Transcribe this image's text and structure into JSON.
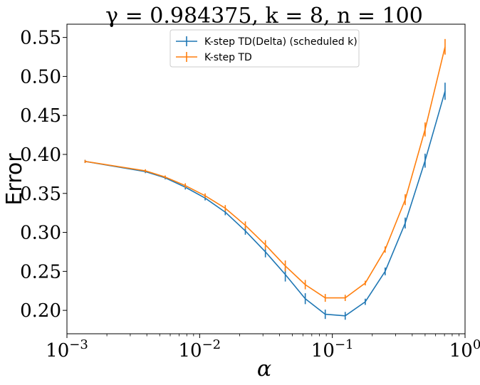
{
  "chart_data": {
    "type": "line",
    "title": "γ = 0.984375, k = 8, n = 100",
    "xlabel": "α",
    "ylabel": "Error",
    "xscale": "log",
    "xlim": [
      0.001,
      1
    ],
    "ylim": [
      0.17,
      0.567
    ],
    "x_ticks": [
      {
        "value": 0.001,
        "base": "10",
        "exp": "−3"
      },
      {
        "value": 0.01,
        "base": "10",
        "exp": "−2"
      },
      {
        "value": 0.1,
        "base": "10",
        "exp": "−1"
      },
      {
        "value": 1,
        "base": "10",
        "exp": "0"
      }
    ],
    "y_ticks": [
      {
        "value": 0.2,
        "label": "0.20"
      },
      {
        "value": 0.25,
        "label": "0.25"
      },
      {
        "value": 0.3,
        "label": "0.30"
      },
      {
        "value": 0.35,
        "label": "0.35"
      },
      {
        "value": 0.4,
        "label": "0.40"
      },
      {
        "value": 0.45,
        "label": "0.45"
      },
      {
        "value": 0.5,
        "label": "0.50"
      },
      {
        "value": 0.55,
        "label": "0.55"
      }
    ],
    "legend": "upper-center",
    "grid": false,
    "x": [
      0.00137,
      0.0039,
      0.0055,
      0.0078,
      0.011,
      0.0156,
      0.0221,
      0.0313,
      0.0442,
      0.0625,
      0.0884,
      0.125,
      0.177,
      0.25,
      0.354,
      0.5,
      0.707
    ],
    "series": [
      {
        "name": "K-step TD(Delta) (scheduled k)",
        "color": "#1f77b4",
        "values": [
          0.391,
          0.378,
          0.37,
          0.358,
          0.344,
          0.326,
          0.302,
          0.275,
          0.246,
          0.215,
          0.195,
          0.193,
          0.211,
          0.25,
          0.312,
          0.392,
          0.481
        ],
        "errors": [
          0.002,
          0.002,
          0.002,
          0.003,
          0.003,
          0.004,
          0.005,
          0.007,
          0.009,
          0.007,
          0.006,
          0.005,
          0.004,
          0.005,
          0.007,
          0.009,
          0.011
        ]
      },
      {
        "name": "K-step TD",
        "color": "#ff7f0e",
        "values": [
          0.391,
          0.379,
          0.371,
          0.36,
          0.347,
          0.331,
          0.309,
          0.284,
          0.257,
          0.233,
          0.216,
          0.216,
          0.235,
          0.278,
          0.342,
          0.432,
          0.538
        ],
        "errors": [
          0.002,
          0.002,
          0.002,
          0.003,
          0.003,
          0.004,
          0.005,
          0.006,
          0.007,
          0.006,
          0.005,
          0.004,
          0.003,
          0.004,
          0.007,
          0.009,
          0.01
        ]
      }
    ]
  }
}
